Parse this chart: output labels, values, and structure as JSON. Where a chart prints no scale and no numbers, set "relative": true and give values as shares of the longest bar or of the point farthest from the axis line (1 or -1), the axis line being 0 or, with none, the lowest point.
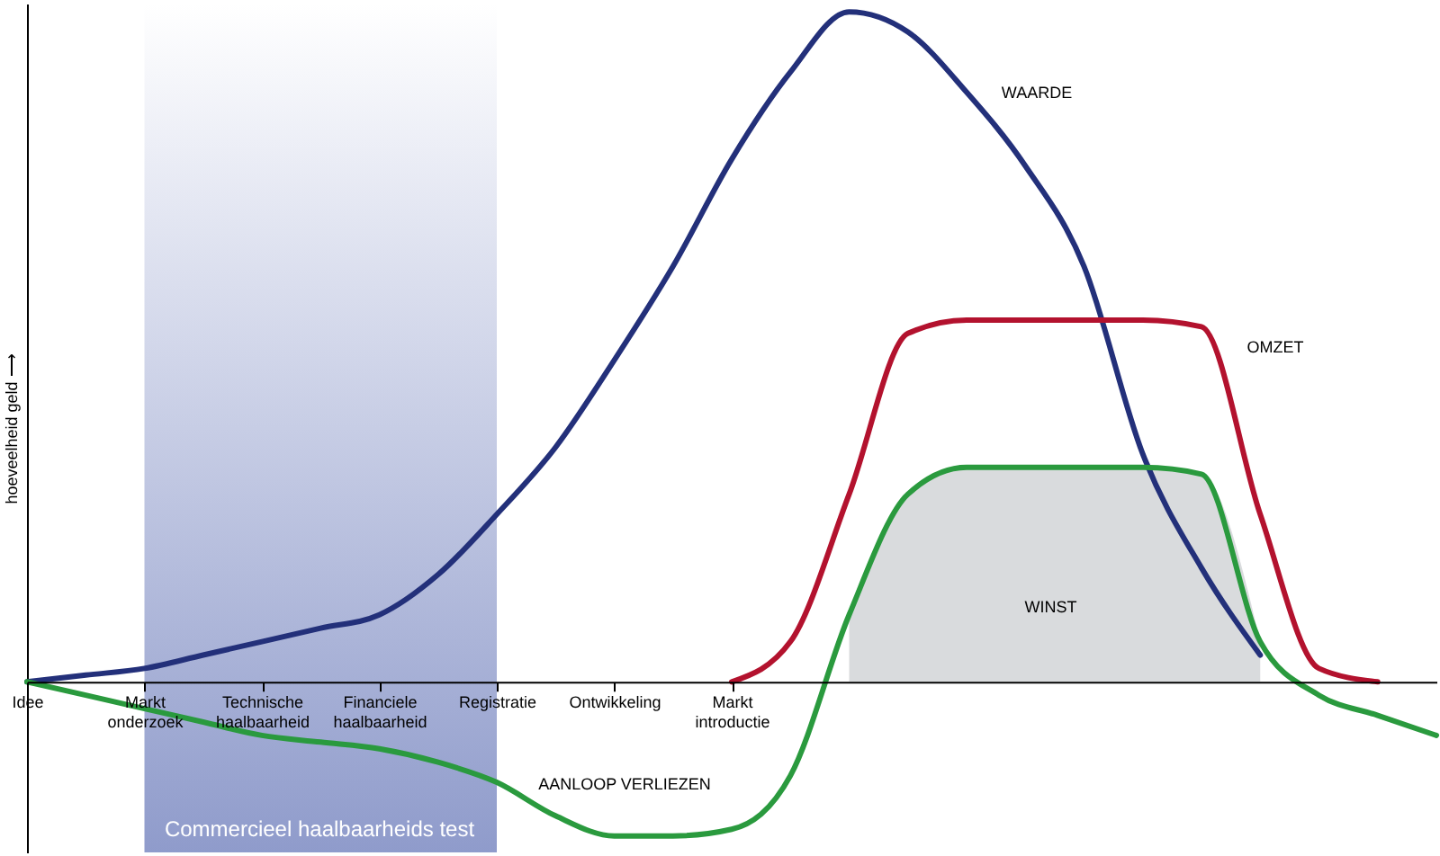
{
  "chart_data": {
    "type": "line",
    "relative": true,
    "ylabel": "hoeveelheid geld ⟶",
    "categories": [
      "Idee",
      null,
      "Markt onderzoek",
      null,
      "Technische haalbaarheid",
      null,
      "Financiele haalbaarheid",
      null,
      "Registratie",
      null,
      "Ontwikkeling",
      null,
      "Markt introductie",
      null,
      null,
      null,
      null,
      null,
      null,
      null,
      null,
      null,
      null,
      null,
      null
    ],
    "series": [
      {
        "type": "area",
        "name": "WINST",
        "color": "#d9dbdd",
        "values": [
          null,
          null,
          null,
          null,
          null,
          null,
          null,
          null,
          null,
          null,
          null,
          null,
          null,
          null,
          0.1,
          0.28,
          0.32,
          0.32,
          0.32,
          0.32,
          0.31,
          0.06,
          null,
          null,
          null
        ]
      },
      {
        "name": "WAARDE",
        "color": "#23307a",
        "values": [
          0,
          0.01,
          0.02,
          0.04,
          0.06,
          0.08,
          0.1,
          0.16,
          0.25,
          0.35,
          0.48,
          0.62,
          0.78,
          0.91,
          1,
          0.97,
          0.88,
          0.77,
          0.62,
          0.34,
          0.17,
          0.04,
          null,
          null,
          null
        ]
      },
      {
        "name": "OMZET",
        "color": "#b3122e",
        "values": [
          null,
          null,
          null,
          null,
          null,
          null,
          null,
          null,
          null,
          null,
          null,
          null,
          0,
          0.06,
          0.28,
          0.52,
          0.54,
          0.54,
          0.54,
          0.54,
          0.53,
          0.25,
          0.02,
          0,
          null
        ]
      },
      {
        "color": "#2a9a3e",
        "values": [
          0,
          -0.02,
          -0.04,
          -0.06,
          -0.08,
          -0.09,
          -0.1,
          -0.12,
          -0.15,
          -0.2,
          -0.23,
          -0.23,
          -0.22,
          -0.14,
          0.1,
          0.28,
          0.32,
          0.32,
          0.32,
          0.32,
          0.31,
          0.06,
          -0.02,
          -0.05,
          -0.08
        ]
      }
    ],
    "bands": [
      {
        "axis": "x",
        "from": "Markt onderzoek",
        "to": "Registratie",
        "label": "Commercieel haalbaarheids test",
        "color": "#8f9bcb"
      }
    ],
    "annotations": [
      "AANLOOP VERLIEZEN"
    ],
    "marker": "none",
    "line_style": "solid"
  }
}
